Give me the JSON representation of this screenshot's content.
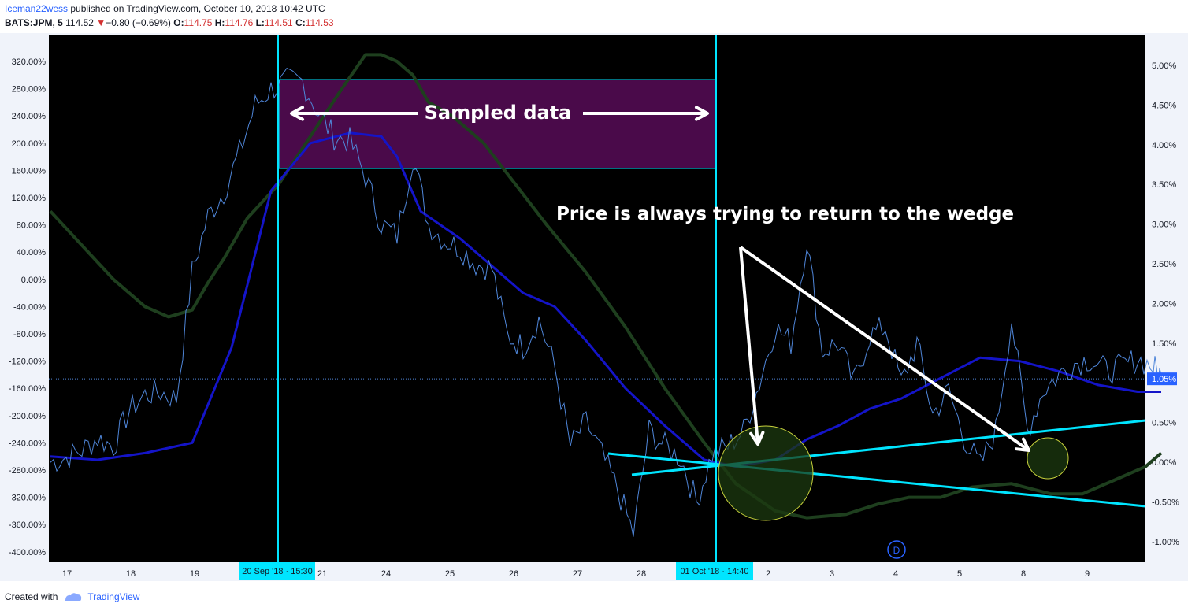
{
  "header": {
    "author": "Iceman22wess",
    "published": " published on TradingView.com, October 10, 2018 10:42 UTC",
    "symbol": "BATS:JPM, 5",
    "last": "114.52",
    "change_arrow": "▼",
    "change": "−0.80 (−0.69%)",
    "o_label": "O:",
    "o_val": "114.75",
    "h_label": "H:",
    "h_val": "114.76",
    "l_label": "L:",
    "l_val": "114.51",
    "c_label": "C:",
    "c_val": "114.53"
  },
  "footer": {
    "created_with": "Created with",
    "brand": "TradingView"
  },
  "colors": {
    "background": "#000000",
    "price": "#4f86d9",
    "blue_ma": "#1414c8",
    "green_ma": "#1e3f1e",
    "cyan": "#00e5ff",
    "box_fill": "#4a0a4a",
    "circle_fill": "#1c3a10",
    "circle_stroke": "#c8d23c",
    "label_bg": "#00e5ff"
  },
  "chart_data": {
    "type": "line",
    "left_axis": [
      "320.00%",
      "280.00%",
      "240.00%",
      "200.00%",
      "160.00%",
      "120.00%",
      "80.00%",
      "40.00%",
      "0.00%",
      "-40.00%",
      "-80.00%",
      "-120.00%",
      "-160.00%",
      "-200.00%",
      "-240.00%",
      "-280.00%",
      "-320.00%",
      "-360.00%",
      "-400.00%"
    ],
    "right_axis": [
      "5.00%",
      "4.50%",
      "4.00%",
      "3.50%",
      "3.00%",
      "2.50%",
      "2.00%",
      "1.50%",
      "1.05%",
      "0.50%",
      "0.00%",
      "-0.50%",
      "-1.00%"
    ],
    "x_labels": [
      "17",
      "18",
      "19",
      "21",
      "24",
      "25",
      "26",
      "27",
      "28",
      "2",
      "3",
      "4",
      "5",
      "8",
      "9"
    ],
    "cursor_labels": [
      "20 Sep '18 · 15:30",
      "01 Oct '18 · 14:40"
    ],
    "current_value": "1.05%",
    "annotations": {
      "sampled": "Sampled data",
      "price_note": "Price is always trying to return to the wedge",
      "marker": "D"
    },
    "series": [
      {
        "key": "price",
        "x": [
          0,
          20,
          40,
          60,
          80,
          100,
          120,
          140,
          160,
          180,
          200,
          220,
          240,
          260,
          280,
          300,
          320,
          340,
          360,
          380,
          400,
          420,
          440,
          460,
          480,
          500,
          520,
          540,
          560,
          580,
          600,
          620,
          640,
          660,
          680,
          700,
          720,
          740,
          760,
          780,
          800,
          820,
          840,
          860,
          880,
          900,
          920,
          940,
          960,
          980,
          1000,
          1020,
          1040,
          1060,
          1080,
          1100,
          1120,
          1140,
          1160,
          1180,
          1200,
          1220,
          1240,
          1260,
          1280,
          1300,
          1320,
          1340,
          1360,
          1380,
          1400,
          1410
        ],
        "values": [
          -0.0,
          0.06,
          0.15,
          0.3,
          0.2,
          0.65,
          0.85,
          0.88,
          0.8,
          2.4,
          3.1,
          3.4,
          3.9,
          4.5,
          4.7,
          4.8,
          4.8,
          4.4,
          4.1,
          4.05,
          3.6,
          3.0,
          2.85,
          3.85,
          3.0,
          2.8,
          2.7,
          2.5,
          2.45,
          1.6,
          1.45,
          1.8,
          1.2,
          0.2,
          0.5,
          0.1,
          -0.35,
          -0.9,
          0.4,
          0.2,
          0.05,
          -0.5,
          0.1,
          0.2,
          0.4,
          1.0,
          1.7,
          1.5,
          2.8,
          1.4,
          1.5,
          1.0,
          1.6,
          1.7,
          1.0,
          1.5,
          0.6,
          0.9,
          0.3,
          -0.05,
          0.4,
          1.8,
          0.4,
          0.9,
          1.1,
          1.25,
          1.3,
          1.15,
          1.2,
          1.3,
          1.2,
          1.1
        ],
        "axis": "right"
      },
      {
        "key": "blue_ma",
        "x": [
          0,
          60,
          120,
          180,
          230,
          280,
          330,
          380,
          420,
          440,
          470,
          520,
          560,
          600,
          640,
          680,
          730,
          780,
          830,
          870,
          920,
          960,
          1000,
          1040,
          1080,
          1130,
          1180,
          1230,
          1280,
          1330,
          1380,
          1410
        ],
        "values": [
          -260,
          -265,
          -255,
          -240,
          -100,
          130,
          200,
          215,
          210,
          180,
          100,
          60,
          20,
          -20,
          -40,
          -90,
          -160,
          -215,
          -265,
          -275,
          -265,
          -235,
          -215,
          -190,
          -175,
          -145,
          -115,
          -120,
          -135,
          -155,
          -165,
          -165
        ],
        "axis": "left"
      },
      {
        "key": "green_ma",
        "x": [
          0,
          40,
          80,
          120,
          150,
          180,
          200,
          220,
          250,
          290,
          330,
          370,
          400,
          420,
          440,
          460,
          480,
          510,
          550,
          590,
          630,
          680,
          730,
          780,
          830,
          870,
          920,
          960,
          1010,
          1050,
          1090,
          1130,
          1170,
          1220,
          1270,
          1310,
          1350,
          1390,
          1410
        ],
        "values": [
          100,
          50,
          0,
          -40,
          -55,
          -45,
          -5,
          30,
          90,
          140,
          210,
          280,
          330,
          330,
          320,
          300,
          260,
          240,
          200,
          140,
          80,
          10,
          -70,
          -160,
          -240,
          -300,
          -340,
          -350,
          -345,
          -330,
          -320,
          -320,
          -305,
          -300,
          -315,
          -315,
          -295,
          -275,
          -255
        ],
        "axis": "left"
      }
    ]
  }
}
